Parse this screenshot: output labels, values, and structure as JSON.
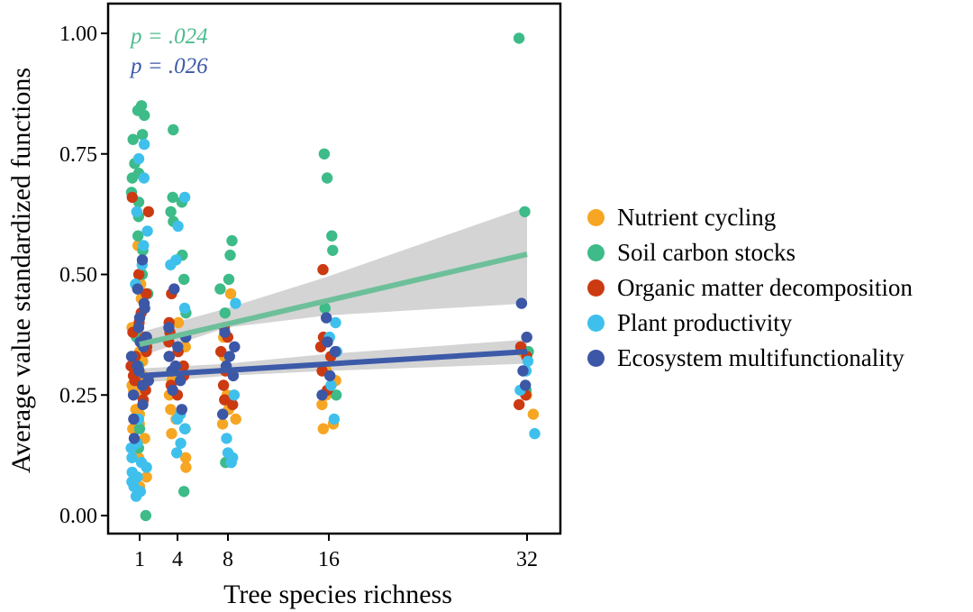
{
  "chart_data": {
    "type": "scatter",
    "title": "",
    "xlabel": "Tree species richness",
    "ylabel": "Average value standardized functions",
    "x_ticks": [
      1,
      4,
      8,
      16,
      32
    ],
    "y_ticks": [
      "0.00",
      "0.25",
      "0.50",
      "0.75",
      "1.00"
    ],
    "ylim": [
      0,
      1
    ],
    "grid": false,
    "legend_position": "right",
    "annotations": [
      {
        "text": "p = .024",
        "color": "#4dbb8e"
      },
      {
        "text": "p = .026",
        "color": "#3c5aa8"
      }
    ],
    "series": [
      {
        "name": "Nutrient cycling",
        "color": "#f6a623",
        "points": [
          [
            1,
            0.21
          ],
          [
            1,
            0.25
          ],
          [
            1,
            0.18
          ],
          [
            1,
            0.3
          ],
          [
            1,
            0.12
          ],
          [
            1,
            0.34
          ],
          [
            1,
            0.27
          ],
          [
            1,
            0.08
          ],
          [
            1,
            0.45
          ],
          [
            1,
            0.56
          ],
          [
            1,
            0.22
          ],
          [
            1,
            0.16
          ],
          [
            1,
            0.29
          ],
          [
            1,
            0.39
          ],
          [
            1,
            0.06
          ],
          [
            1,
            0.14
          ],
          [
            1,
            0.32
          ],
          [
            1,
            0.26
          ],
          [
            1,
            0.48
          ],
          [
            1,
            0.19
          ],
          [
            4,
            0.17
          ],
          [
            4,
            0.25
          ],
          [
            4,
            0.35
          ],
          [
            4,
            0.1
          ],
          [
            4,
            0.22
          ],
          [
            4,
            0.3
          ],
          [
            4,
            0.12
          ],
          [
            4,
            0.28
          ],
          [
            4,
            0.2
          ],
          [
            4,
            0.4
          ],
          [
            8,
            0.46
          ],
          [
            8,
            0.33
          ],
          [
            8,
            0.19
          ],
          [
            8,
            0.2
          ],
          [
            8,
            0.25
          ],
          [
            8,
            0.37
          ],
          [
            8,
            0.22
          ],
          [
            8,
            0.3
          ],
          [
            16,
            0.18
          ],
          [
            16,
            0.19
          ],
          [
            16,
            0.25
          ],
          [
            16,
            0.3
          ],
          [
            16,
            0.23
          ],
          [
            16,
            0.28
          ],
          [
            32,
            0.26
          ],
          [
            32,
            0.21
          ],
          [
            32,
            0.25
          ],
          [
            32,
            0.34
          ]
        ]
      },
      {
        "name": "Soil carbon stocks",
        "color": "#3dbb88",
        "points": [
          [
            1,
            0.85
          ],
          [
            1,
            0.84
          ],
          [
            1,
            0.83
          ],
          [
            1,
            0.79
          ],
          [
            1,
            0.78
          ],
          [
            1,
            0.73
          ],
          [
            1,
            0.71
          ],
          [
            1,
            0.7
          ],
          [
            1,
            0.67
          ],
          [
            1,
            0.58
          ],
          [
            1,
            0.55
          ],
          [
            1,
            0.5
          ],
          [
            1,
            0.46
          ],
          [
            1,
            0.37
          ],
          [
            1,
            0.31
          ],
          [
            1,
            0.18
          ],
          [
            1,
            0.14
          ],
          [
            1,
            0.0
          ],
          [
            1,
            0.65
          ],
          [
            1,
            0.62
          ],
          [
            4,
            0.8
          ],
          [
            4,
            0.66
          ],
          [
            4,
            0.65
          ],
          [
            4,
            0.63
          ],
          [
            4,
            0.61
          ],
          [
            4,
            0.54
          ],
          [
            4,
            0.49
          ],
          [
            4,
            0.42
          ],
          [
            4,
            0.18
          ],
          [
            4,
            0.05
          ],
          [
            8,
            0.57
          ],
          [
            8,
            0.54
          ],
          [
            8,
            0.49
          ],
          [
            8,
            0.47
          ],
          [
            8,
            0.42
          ],
          [
            8,
            0.11
          ],
          [
            16,
            0.75
          ],
          [
            16,
            0.7
          ],
          [
            16,
            0.58
          ],
          [
            16,
            0.55
          ],
          [
            16,
            0.43
          ],
          [
            16,
            0.25
          ],
          [
            32,
            0.99
          ],
          [
            32,
            0.63
          ],
          [
            32,
            0.34
          ],
          [
            32,
            0.26
          ]
        ]
      },
      {
        "name": "Organic matter decomposition",
        "color": "#cc3a12",
        "points": [
          [
            1,
            0.66
          ],
          [
            1,
            0.63
          ],
          [
            1,
            0.5
          ],
          [
            1,
            0.46
          ],
          [
            1,
            0.42
          ],
          [
            1,
            0.4
          ],
          [
            1,
            0.38
          ],
          [
            1,
            0.37
          ],
          [
            1,
            0.35
          ],
          [
            1,
            0.33
          ],
          [
            1,
            0.31
          ],
          [
            1,
            0.29
          ],
          [
            1,
            0.27
          ],
          [
            1,
            0.24
          ],
          [
            1,
            0.36
          ],
          [
            1,
            0.34
          ],
          [
            1,
            0.28
          ],
          [
            1,
            0.26
          ],
          [
            4,
            0.46
          ],
          [
            4,
            0.4
          ],
          [
            4,
            0.38
          ],
          [
            4,
            0.36
          ],
          [
            4,
            0.34
          ],
          [
            4,
            0.31
          ],
          [
            4,
            0.29
          ],
          [
            4,
            0.27
          ],
          [
            4,
            0.25
          ],
          [
            4,
            0.33
          ],
          [
            8,
            0.39
          ],
          [
            8,
            0.37
          ],
          [
            8,
            0.34
          ],
          [
            8,
            0.3
          ],
          [
            8,
            0.27
          ],
          [
            8,
            0.24
          ],
          [
            8,
            0.23
          ],
          [
            16,
            0.51
          ],
          [
            16,
            0.37
          ],
          [
            16,
            0.35
          ],
          [
            16,
            0.33
          ],
          [
            16,
            0.3
          ],
          [
            16,
            0.26
          ],
          [
            32,
            0.35
          ],
          [
            32,
            0.33
          ],
          [
            32,
            0.25
          ],
          [
            32,
            0.23
          ]
        ]
      },
      {
        "name": "Plant productivity",
        "color": "#3fc0ec",
        "points": [
          [
            1,
            0.77
          ],
          [
            1,
            0.74
          ],
          [
            1,
            0.7
          ],
          [
            1,
            0.63
          ],
          [
            1,
            0.59
          ],
          [
            1,
            0.56
          ],
          [
            1,
            0.52
          ],
          [
            1,
            0.48
          ],
          [
            1,
            0.15
          ],
          [
            1,
            0.12
          ],
          [
            1,
            0.1
          ],
          [
            1,
            0.09
          ],
          [
            1,
            0.07
          ],
          [
            1,
            0.06
          ],
          [
            1,
            0.04
          ],
          [
            1,
            0.14
          ],
          [
            1,
            0.11
          ],
          [
            1,
            0.2
          ],
          [
            1,
            0.08
          ],
          [
            1,
            0.05
          ],
          [
            4,
            0.66
          ],
          [
            4,
            0.6
          ],
          [
            4,
            0.53
          ],
          [
            4,
            0.52
          ],
          [
            4,
            0.43
          ],
          [
            4,
            0.21
          ],
          [
            4,
            0.2
          ],
          [
            4,
            0.18
          ],
          [
            4,
            0.15
          ],
          [
            4,
            0.13
          ],
          [
            8,
            0.44
          ],
          [
            8,
            0.25
          ],
          [
            8,
            0.16
          ],
          [
            8,
            0.13
          ],
          [
            8,
            0.11
          ],
          [
            8,
            0.12
          ],
          [
            16,
            0.4
          ],
          [
            16,
            0.37
          ],
          [
            16,
            0.34
          ],
          [
            16,
            0.27
          ],
          [
            16,
            0.2
          ],
          [
            32,
            0.3
          ],
          [
            32,
            0.26
          ],
          [
            32,
            0.17
          ],
          [
            32,
            0.32
          ]
        ]
      },
      {
        "name": "Ecosystem multifunctionality",
        "color": "#3c57a6",
        "points": [
          [
            1,
            0.53
          ],
          [
            1,
            0.47
          ],
          [
            1,
            0.44
          ],
          [
            1,
            0.43
          ],
          [
            1,
            0.41
          ],
          [
            1,
            0.39
          ],
          [
            1,
            0.37
          ],
          [
            1,
            0.35
          ],
          [
            1,
            0.33
          ],
          [
            1,
            0.31
          ],
          [
            1,
            0.3
          ],
          [
            1,
            0.28
          ],
          [
            1,
            0.27
          ],
          [
            1,
            0.25
          ],
          [
            1,
            0.23
          ],
          [
            1,
            0.2
          ],
          [
            1,
            0.16
          ],
          [
            1,
            0.36
          ],
          [
            4,
            0.47
          ],
          [
            4,
            0.39
          ],
          [
            4,
            0.37
          ],
          [
            4,
            0.35
          ],
          [
            4,
            0.33
          ],
          [
            4,
            0.31
          ],
          [
            4,
            0.3
          ],
          [
            4,
            0.28
          ],
          [
            4,
            0.26
          ],
          [
            4,
            0.22
          ],
          [
            8,
            0.38
          ],
          [
            8,
            0.35
          ],
          [
            8,
            0.33
          ],
          [
            8,
            0.31
          ],
          [
            8,
            0.29
          ],
          [
            8,
            0.21
          ],
          [
            16,
            0.41
          ],
          [
            16,
            0.36
          ],
          [
            16,
            0.34
          ],
          [
            16,
            0.29
          ],
          [
            16,
            0.25
          ],
          [
            32,
            0.44
          ],
          [
            32,
            0.37
          ],
          [
            32,
            0.3
          ],
          [
            32,
            0.27
          ]
        ]
      }
    ],
    "fit_lines": [
      {
        "series": "Soil carbon stocks",
        "color": "#6dbf9a",
        "from": [
          1,
          0.355
        ],
        "to": [
          32,
          0.542
        ],
        "ci_lower": [
          [
            1,
            0.33
          ],
          [
            8,
            0.39
          ],
          [
            16,
            0.415
          ],
          [
            32,
            0.44
          ]
        ],
        "ci_upper": [
          [
            1,
            0.38
          ],
          [
            8,
            0.43
          ],
          [
            16,
            0.495
          ],
          [
            32,
            0.64
          ]
        ]
      },
      {
        "series": "Ecosystem multifunctionality",
        "color": "#3c5aa8",
        "from": [
          1,
          0.29
        ],
        "to": [
          32,
          0.34
        ],
        "ci_lower": [
          [
            1,
            0.275
          ],
          [
            8,
            0.29
          ],
          [
            16,
            0.3
          ],
          [
            32,
            0.315
          ]
        ],
        "ci_upper": [
          [
            1,
            0.305
          ],
          [
            8,
            0.315
          ],
          [
            16,
            0.335
          ],
          [
            32,
            0.365
          ]
        ]
      }
    ]
  }
}
